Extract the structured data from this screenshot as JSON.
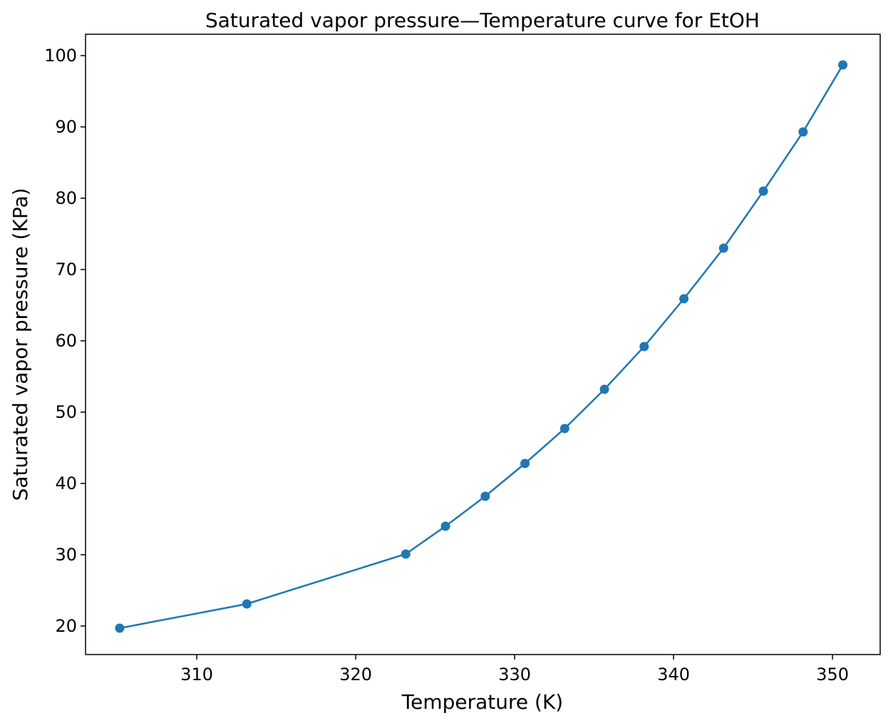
{
  "chart_data": {
    "type": "line",
    "title": "Saturated vapor pressure—Temperature curve for EtOH",
    "xlabel": "Temperature (K)",
    "ylabel": "Saturated vapor pressure (KPa)",
    "xlim": [
      303,
      353
    ],
    "ylim": [
      16,
      103
    ],
    "xticks": [
      310,
      320,
      330,
      340,
      350
    ],
    "yticks": [
      20,
      30,
      40,
      50,
      60,
      70,
      80,
      90,
      100
    ],
    "grid": false,
    "markers": true,
    "series": [
      {
        "color": "#1f77b4",
        "x": [
          305.15,
          313.15,
          323.15,
          325.65,
          328.15,
          330.65,
          333.15,
          335.65,
          338.15,
          340.65,
          343.15,
          345.65,
          348.15,
          350.65
        ],
        "y": [
          19.7,
          23.1,
          30.1,
          34.0,
          38.2,
          42.8,
          47.7,
          53.2,
          59.2,
          65.9,
          73.0,
          81.0,
          89.3,
          98.7
        ]
      }
    ]
  }
}
